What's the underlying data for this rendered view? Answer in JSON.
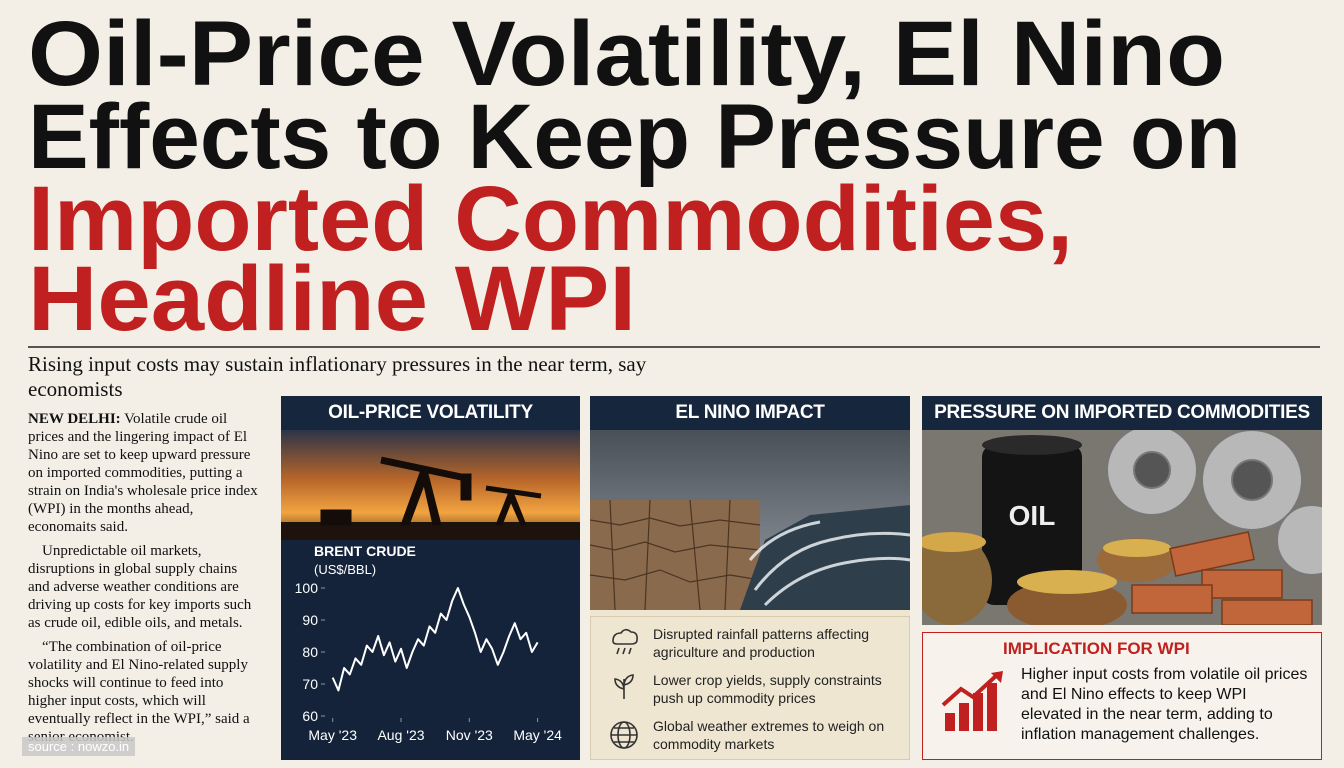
{
  "header": {
    "title_lines": [
      "Oil-Price Volatility, El Nino",
      "Effects to Keep Pressure on",
      "Imported Commodities,",
      "Headline WPI"
    ],
    "subtitle": "Rising input costs may sustain inflationary pressures in the near term, say economists"
  },
  "article": {
    "paragraphs": [
      {
        "dateline": "NEW DELHI:",
        "text": "Volatile crude oil prices and the lingering impact of El Nino are set to keep upward pressure on imported commodities, putting a strain on India's wholesale price index (WPI) in the months ahead, economaits said."
      },
      {
        "text": "Unpredictable oil markets, disruptions in global supply chains and adverse weather conditions are driving up costs for key imports such as crude oil, edible oils, and metals."
      },
      {
        "text": "“The combination of oil-price volatility and El Nino-related supply shocks will continue to feed into higher input costs, which will eventually reflect in the WPI,” said a senior economist."
      }
    ]
  },
  "panels": [
    {
      "title": "OIL-PRICE VOLATILITY"
    },
    {
      "title": "EL NINO IMPACT",
      "items": [
        "Disrupted rainfall patterns affecting agriculture and production",
        "Lower crop yields, supply constraints push up commodity prices",
        "Global weather extremes to weigh on commodity markets"
      ]
    },
    {
      "title": "PRESSURE ON IMPORTED COMMODITIES",
      "image_label": "OIL",
      "box_title": "IMPLICATION FOR WPI",
      "box_text": "Higher input costs from volatile oil prices and El Nino effects to keep WPI elevated in the near term, adding to inflation management challenges."
    }
  ],
  "chart_data": {
    "type": "line",
    "title": "BRENT CRUDE",
    "subtitle": "(US$/BBL)",
    "x": [
      0,
      1,
      2,
      3,
      4,
      5,
      6,
      7,
      8,
      9,
      10,
      11,
      12,
      13,
      14,
      15,
      16,
      17,
      18,
      19,
      20,
      21,
      22,
      23,
      24,
      25,
      26,
      27,
      28,
      29,
      30,
      31,
      32,
      33,
      34,
      35,
      36
    ],
    "series": [
      {
        "name": "Brent crude",
        "color": "#ffffff",
        "values": [
          72,
          68,
          75,
          73,
          78,
          76,
          82,
          80,
          85,
          79,
          83,
          77,
          81,
          75,
          80,
          84,
          82,
          88,
          86,
          92,
          90,
          96,
          100,
          95,
          91,
          86,
          80,
          84,
          81,
          76,
          80,
          85,
          89,
          84,
          86,
          80,
          83
        ]
      }
    ],
    "xlim": [
      -1,
      38
    ],
    "xticks": [
      {
        "value": 0,
        "label": "May '23"
      },
      {
        "value": 12,
        "label": "Aug '23"
      },
      {
        "value": 24,
        "label": "Nov '23"
      },
      {
        "value": 36,
        "label": "May '24"
      }
    ],
    "ylim": [
      60,
      100
    ],
    "yticks": [
      60,
      70,
      80,
      90,
      100
    ]
  },
  "footer": {
    "source": "source : nowzo.in"
  }
}
